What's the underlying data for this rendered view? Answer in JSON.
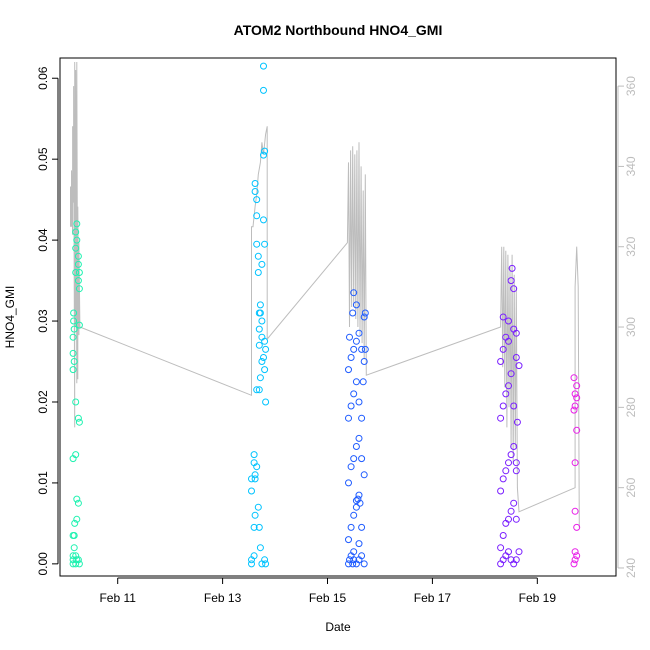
{
  "chart_data": {
    "type": "scatter",
    "title": "ATOM2 Northbound HNO4_GMI",
    "xlabel": "Date",
    "ylabel": "HNO4_GMI",
    "x_ticks": [
      "Feb 11",
      "Feb 13",
      "Feb 15",
      "Feb 17",
      "Feb 19"
    ],
    "x_tick_days": [
      11,
      13,
      15,
      17,
      19
    ],
    "xlim_days": [
      9.9,
      20.5
    ],
    "ylim": [
      -0.0015,
      0.0625
    ],
    "y_ticks": [
      "0.00",
      "0.01",
      "0.02",
      "0.03",
      "0.04",
      "0.05",
      "0.06"
    ],
    "y_tick_values": [
      0,
      0.01,
      0.02,
      0.03,
      0.04,
      0.05,
      0.06
    ],
    "y2_ticks": [
      "240",
      "260",
      "280",
      "300",
      "320",
      "340",
      "360"
    ],
    "y2_tick_values": [
      240,
      260,
      280,
      300,
      320,
      340,
      360
    ],
    "y2lim": [
      238,
      367
    ],
    "grid": false,
    "series": [
      {
        "color": "#1ef2b0",
        "points": [
          [
            10.15,
            0.0
          ],
          [
            10.15,
            0.0005
          ],
          [
            10.15,
            0.001
          ],
          [
            10.17,
            0.002
          ],
          [
            10.17,
            0.0035
          ],
          [
            10.18,
            0.005
          ],
          [
            10.2,
            0.0
          ],
          [
            10.2,
            0.001
          ],
          [
            10.22,
            0.0005
          ],
          [
            10.15,
            0.024
          ],
          [
            10.15,
            0.026
          ],
          [
            10.15,
            0.028
          ],
          [
            10.16,
            0.03
          ],
          [
            10.16,
            0.031
          ],
          [
            10.17,
            0.029
          ],
          [
            10.17,
            0.025
          ],
          [
            10.2,
            0.036
          ],
          [
            10.2,
            0.039
          ],
          [
            10.2,
            0.041
          ],
          [
            10.22,
            0.04
          ],
          [
            10.22,
            0.042
          ],
          [
            10.25,
            0.038
          ],
          [
            10.25,
            0.035
          ],
          [
            10.25,
            0.037
          ],
          [
            10.27,
            0.034
          ],
          [
            10.27,
            0.036
          ],
          [
            10.27,
            0.0295
          ],
          [
            10.15,
            0.013
          ],
          [
            10.2,
            0.0135
          ],
          [
            10.2,
            0.02
          ],
          [
            10.25,
            0.018
          ],
          [
            10.27,
            0.0175
          ],
          [
            10.22,
            0.008
          ],
          [
            10.25,
            0.0075
          ],
          [
            10.25,
            0.0005
          ],
          [
            10.27,
            0.0
          ],
          [
            10.15,
            0.0035
          ],
          [
            10.22,
            0.0055
          ]
        ]
      },
      {
        "color": "#00c3ff",
        "points": [
          [
            13.55,
            0.0
          ],
          [
            13.55,
            0.0005
          ],
          [
            13.6,
            0.001
          ],
          [
            13.6,
            0.0125
          ],
          [
            13.6,
            0.0135
          ],
          [
            13.62,
            0.011
          ],
          [
            13.62,
            0.0105
          ],
          [
            13.65,
            0.012
          ],
          [
            13.55,
            0.0105
          ],
          [
            13.55,
            0.009
          ],
          [
            13.62,
            0.047
          ],
          [
            13.62,
            0.046
          ],
          [
            13.65,
            0.045
          ],
          [
            13.65,
            0.043
          ],
          [
            13.65,
            0.0395
          ],
          [
            13.68,
            0.038
          ],
          [
            13.68,
            0.036
          ],
          [
            13.7,
            0.031
          ],
          [
            13.7,
            0.029
          ],
          [
            13.7,
            0.027
          ],
          [
            13.72,
            0.031
          ],
          [
            13.72,
            0.032
          ],
          [
            13.75,
            0.03
          ],
          [
            13.75,
            0.028
          ],
          [
            13.72,
            0.023
          ],
          [
            13.75,
            0.025
          ],
          [
            13.78,
            0.0255
          ],
          [
            13.8,
            0.024
          ],
          [
            13.8,
            0.0275
          ],
          [
            13.82,
            0.0265
          ],
          [
            13.65,
            0.0215
          ],
          [
            13.7,
            0.0215
          ],
          [
            13.82,
            0.02
          ],
          [
            13.75,
            0.037
          ],
          [
            13.78,
            0.0425
          ],
          [
            13.8,
            0.0395
          ],
          [
            13.78,
            0.0505
          ],
          [
            13.8,
            0.051
          ],
          [
            13.78,
            0.0585
          ],
          [
            13.78,
            0.0615
          ],
          [
            13.6,
            0.0045
          ],
          [
            13.62,
            0.006
          ],
          [
            13.72,
            0.002
          ],
          [
            13.75,
            0.0
          ],
          [
            13.8,
            0.0005
          ],
          [
            13.82,
            0.0
          ],
          [
            13.7,
            0.0045
          ],
          [
            13.68,
            0.007
          ]
        ]
      },
      {
        "color": "#1f5cff",
        "points": [
          [
            15.4,
            0.0
          ],
          [
            15.42,
            0.0005
          ],
          [
            15.45,
            0.001
          ],
          [
            15.48,
            0.0
          ],
          [
            15.5,
            0.0005
          ],
          [
            15.55,
            0.0
          ],
          [
            15.6,
            0.0005
          ],
          [
            15.65,
            0.001
          ],
          [
            15.7,
            0.0
          ],
          [
            15.4,
            0.003
          ],
          [
            15.45,
            0.0045
          ],
          [
            15.5,
            0.006
          ],
          [
            15.55,
            0.007
          ],
          [
            15.58,
            0.008
          ],
          [
            15.6,
            0.0085
          ],
          [
            15.62,
            0.0075
          ],
          [
            15.55,
            0.0078
          ],
          [
            15.4,
            0.01
          ],
          [
            15.45,
            0.012
          ],
          [
            15.5,
            0.013
          ],
          [
            15.55,
            0.0145
          ],
          [
            15.6,
            0.0155
          ],
          [
            15.65,
            0.013
          ],
          [
            15.4,
            0.018
          ],
          [
            15.45,
            0.0195
          ],
          [
            15.5,
            0.021
          ],
          [
            15.55,
            0.0225
          ],
          [
            15.6,
            0.02
          ],
          [
            15.65,
            0.018
          ],
          [
            15.4,
            0.024
          ],
          [
            15.45,
            0.0255
          ],
          [
            15.5,
            0.0265
          ],
          [
            15.55,
            0.0275
          ],
          [
            15.6,
            0.0285
          ],
          [
            15.65,
            0.0265
          ],
          [
            15.7,
            0.025
          ],
          [
            15.42,
            0.028
          ],
          [
            15.48,
            0.031
          ],
          [
            15.5,
            0.0335
          ],
          [
            15.55,
            0.032
          ],
          [
            15.7,
            0.0305
          ],
          [
            15.72,
            0.031
          ],
          [
            15.68,
            0.0225
          ],
          [
            15.72,
            0.0265
          ],
          [
            15.7,
            0.011
          ],
          [
            15.65,
            0.0045
          ],
          [
            15.6,
            0.0025
          ],
          [
            15.5,
            0.0015
          ]
        ]
      },
      {
        "color": "#7a1fff",
        "points": [
          [
            18.3,
            0.0
          ],
          [
            18.35,
            0.0005
          ],
          [
            18.4,
            0.001
          ],
          [
            18.45,
            0.0015
          ],
          [
            18.5,
            0.0005
          ],
          [
            18.55,
            0.0
          ],
          [
            18.6,
            0.0005
          ],
          [
            18.65,
            0.0015
          ],
          [
            18.3,
            0.002
          ],
          [
            18.35,
            0.0035
          ],
          [
            18.4,
            0.005
          ],
          [
            18.45,
            0.0055
          ],
          [
            18.5,
            0.0065
          ],
          [
            18.55,
            0.0075
          ],
          [
            18.6,
            0.0055
          ],
          [
            18.3,
            0.009
          ],
          [
            18.35,
            0.0105
          ],
          [
            18.4,
            0.0115
          ],
          [
            18.45,
            0.0125
          ],
          [
            18.5,
            0.0135
          ],
          [
            18.55,
            0.0145
          ],
          [
            18.6,
            0.0115
          ],
          [
            18.3,
            0.018
          ],
          [
            18.35,
            0.0195
          ],
          [
            18.4,
            0.021
          ],
          [
            18.45,
            0.022
          ],
          [
            18.5,
            0.0235
          ],
          [
            18.55,
            0.0195
          ],
          [
            18.3,
            0.025
          ],
          [
            18.35,
            0.0265
          ],
          [
            18.4,
            0.028
          ],
          [
            18.45,
            0.0275
          ],
          [
            18.55,
            0.029
          ],
          [
            18.6,
            0.0255
          ],
          [
            18.65,
            0.0245
          ],
          [
            18.35,
            0.0305
          ],
          [
            18.45,
            0.03
          ],
          [
            18.5,
            0.035
          ],
          [
            18.52,
            0.0365
          ],
          [
            18.55,
            0.034
          ],
          [
            18.6,
            0.0285
          ],
          [
            18.62,
            0.0175
          ],
          [
            18.6,
            0.0125
          ]
        ]
      },
      {
        "color": "#e81ee8",
        "points": [
          [
            19.7,
            0.0
          ],
          [
            19.72,
            0.0005
          ],
          [
            19.75,
            0.001
          ],
          [
            19.72,
            0.0015
          ],
          [
            19.75,
            0.0045
          ],
          [
            19.72,
            0.0065
          ],
          [
            19.72,
            0.0125
          ],
          [
            19.75,
            0.0165
          ],
          [
            19.7,
            0.019
          ],
          [
            19.72,
            0.0195
          ],
          [
            19.75,
            0.0205
          ],
          [
            19.72,
            0.021
          ],
          [
            19.7,
            0.023
          ],
          [
            19.75,
            0.022
          ]
        ]
      }
    ],
    "right_axis_line": {
      "color": "#bdbdbd",
      "points": [
        [
          10.1,
          325
        ],
        [
          10.1,
          335
        ],
        [
          10.12,
          325
        ],
        [
          10.12,
          339
        ],
        [
          10.14,
          323
        ],
        [
          10.14,
          350
        ],
        [
          10.16,
          331
        ],
        [
          10.16,
          360
        ],
        [
          10.18,
          275
        ],
        [
          10.18,
          366
        ],
        [
          10.2,
          300
        ],
        [
          10.2,
          364
        ],
        [
          10.22,
          286
        ],
        [
          10.22,
          366
        ],
        [
          10.24,
          287
        ],
        [
          10.24,
          330
        ],
        [
          10.26,
          298
        ],
        [
          10.26,
          321
        ],
        [
          10.28,
          300
        ],
        [
          13.55,
          283
        ],
        [
          13.55,
          325
        ],
        [
          13.58,
          325
        ],
        [
          13.62,
          330
        ],
        [
          13.65,
          333
        ],
        [
          13.68,
          338
        ],
        [
          13.72,
          341
        ],
        [
          13.75,
          346
        ],
        [
          13.78,
          343
        ],
        [
          13.82,
          348
        ],
        [
          13.85,
          350
        ],
        [
          13.85,
          297
        ],
        [
          15.38,
          321
        ],
        [
          15.4,
          341
        ],
        [
          15.42,
          300
        ],
        [
          15.44,
          344
        ],
        [
          15.46,
          305
        ],
        [
          15.48,
          345
        ],
        [
          15.5,
          305
        ],
        [
          15.52,
          343
        ],
        [
          15.54,
          302
        ],
        [
          15.56,
          344
        ],
        [
          15.58,
          300
        ],
        [
          15.6,
          346
        ],
        [
          15.62,
          298
        ],
        [
          15.64,
          340
        ],
        [
          15.66,
          296
        ],
        [
          15.68,
          334
        ],
        [
          15.7,
          292
        ],
        [
          15.72,
          338
        ],
        [
          15.74,
          288
        ],
        [
          18.3,
          300
        ],
        [
          18.32,
          320
        ],
        [
          18.34,
          290
        ],
        [
          18.36,
          320
        ],
        [
          18.38,
          285
        ],
        [
          18.4,
          319
        ],
        [
          18.42,
          275
        ],
        [
          18.44,
          318
        ],
        [
          18.46,
          280
        ],
        [
          18.48,
          315
        ],
        [
          18.5,
          270
        ],
        [
          18.52,
          318
        ],
        [
          18.54,
          266
        ],
        [
          18.56,
          313
        ],
        [
          18.58,
          270
        ],
        [
          18.6,
          310
        ],
        [
          18.62,
          260
        ],
        [
          18.65,
          254
        ],
        [
          19.72,
          260
        ],
        [
          19.72,
          310
        ],
        [
          19.75,
          320
        ],
        [
          19.78,
          310
        ],
        [
          19.8,
          250
        ]
      ]
    }
  }
}
